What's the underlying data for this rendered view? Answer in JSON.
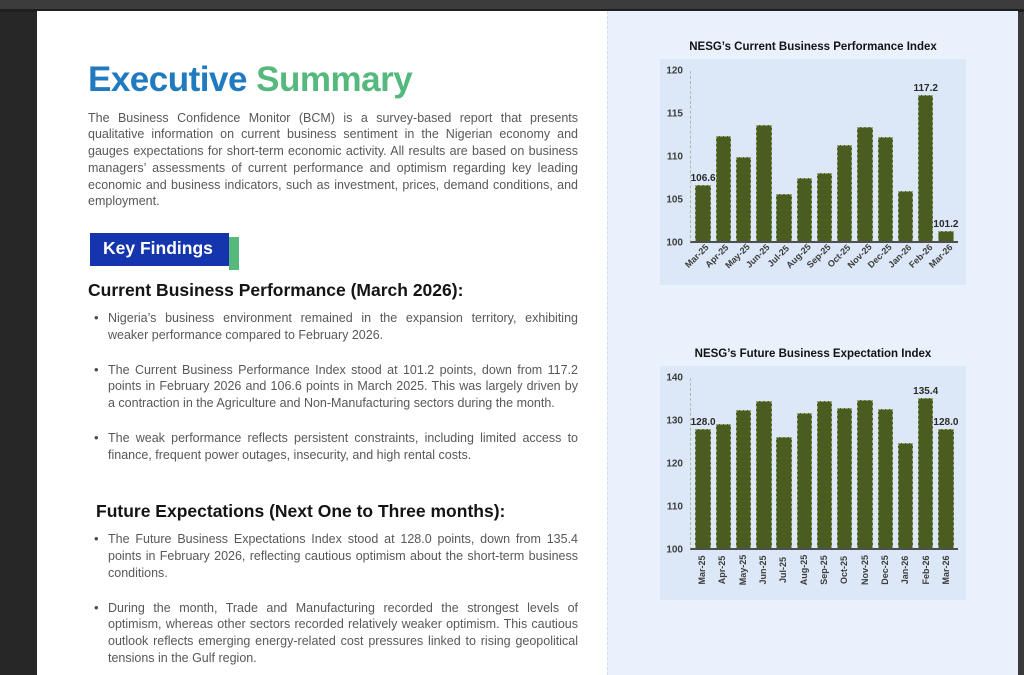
{
  "document": {
    "title_part1": "Executive",
    "title_part2": "Summary",
    "intro": "The Business Confidence Monitor (BCM) is a survey-based report that presents qualitative information on current business sentiment in the Nigerian economy and gauges expectations for short-term economic activity. All results are based on business managers’ assessments of current performance and optimism regarding key leading economic and business indicators, such as investment, prices, demand conditions, and employment.",
    "key_findings_label": "Key Findings",
    "sections": [
      {
        "heading": "Current Business Performance (March 2026):",
        "bullets": [
          "Nigeria’s business environment remained in the expansion territory, exhibiting weaker performance compared to February 2026.",
          "The Current Business Performance Index stood at 101.2 points, down from 117.2 points in February 2026 and 106.6 points in March 2025. This was largely driven by a contraction in the Agriculture and Non-Manufacturing sectors during the month.",
          "The weak performance reflects persistent constraints, including limited access to finance, frequent power outages, insecurity, and high rental costs."
        ]
      },
      {
        "heading": "Future Expectations (Next One to Three months):",
        "bullets": [
          "The Future Business Expectations Index stood at 128.0 points, down from 135.4 points in February 2026, reflecting cautious optimism about the short-term business conditions.",
          "During the month, Trade and Manufacturing recorded the strongest levels of optimism, whereas other sectors recorded relatively weaker optimism. This cautious outlook reflects emerging energy-related cost pressures linked to rising geopolitical tensions in the Gulf region."
        ]
      }
    ]
  },
  "colors": {
    "title_blue": "#1f7ac0",
    "title_green": "#55b97e",
    "key_findings_bg": "#1535ae",
    "key_findings_accent": "#57ba7d",
    "body_text": "#58585a",
    "bar_green": "#4a5c1f",
    "chart_bg": "#dce8f7",
    "panel_bg": "#e9f1fd"
  },
  "chart_data": [
    {
      "type": "bar",
      "title": "NESG’s Current Business Performance Index",
      "categories": [
        "Mar-25",
        "Apr-25",
        "May-25",
        "Jun-25",
        "Jul-25",
        "Aug-25",
        "Sep-25",
        "Oct-25",
        "Nov-25",
        "Dec-25",
        "Jan-26",
        "Feb-26",
        "Mar-26"
      ],
      "values": [
        106.6,
        112.4,
        109.9,
        113.7,
        105.5,
        107.4,
        108.0,
        111.3,
        113.4,
        112.2,
        105.9,
        117.2,
        101.2
      ],
      "bar_labels": [
        "106.6",
        "",
        "",
        "",
        "",
        "",
        "",
        "",
        "",
        "",
        "",
        "117.2",
        "101.2"
      ],
      "xlabel": "",
      "ylabel": "",
      "ylim": [
        100,
        120
      ],
      "yticks": [
        100,
        105,
        110,
        115,
        120
      ],
      "grid": false,
      "legend": "none",
      "bar_color": "#4a5c1f",
      "xlabel_rotation": -45
    },
    {
      "type": "bar",
      "title": "NESG’s Future Business Expectation Index",
      "categories": [
        "Mar-25",
        "Apr-25",
        "May-25",
        "Jun-25",
        "Jul-25",
        "Aug-25",
        "Sep-25",
        "Oct-25",
        "Nov-25",
        "Dec-25",
        "Jan-26",
        "Feb-26",
        "Mar-26"
      ],
      "values": [
        128.0,
        129.2,
        132.4,
        134.6,
        126.2,
        131.7,
        134.5,
        132.9,
        134.8,
        132.7,
        124.8,
        135.4,
        128.0
      ],
      "bar_labels": [
        "128.0",
        "",
        "",
        "",
        "",
        "",
        "",
        "",
        "",
        "",
        "",
        "135.4",
        "128.0"
      ],
      "xlabel": "",
      "ylabel": "",
      "ylim": [
        100,
        140
      ],
      "yticks": [
        100,
        110,
        120,
        130,
        140
      ],
      "grid": false,
      "legend": "none",
      "bar_color": "#4a5c1f",
      "xlabel_rotation": -90
    }
  ]
}
